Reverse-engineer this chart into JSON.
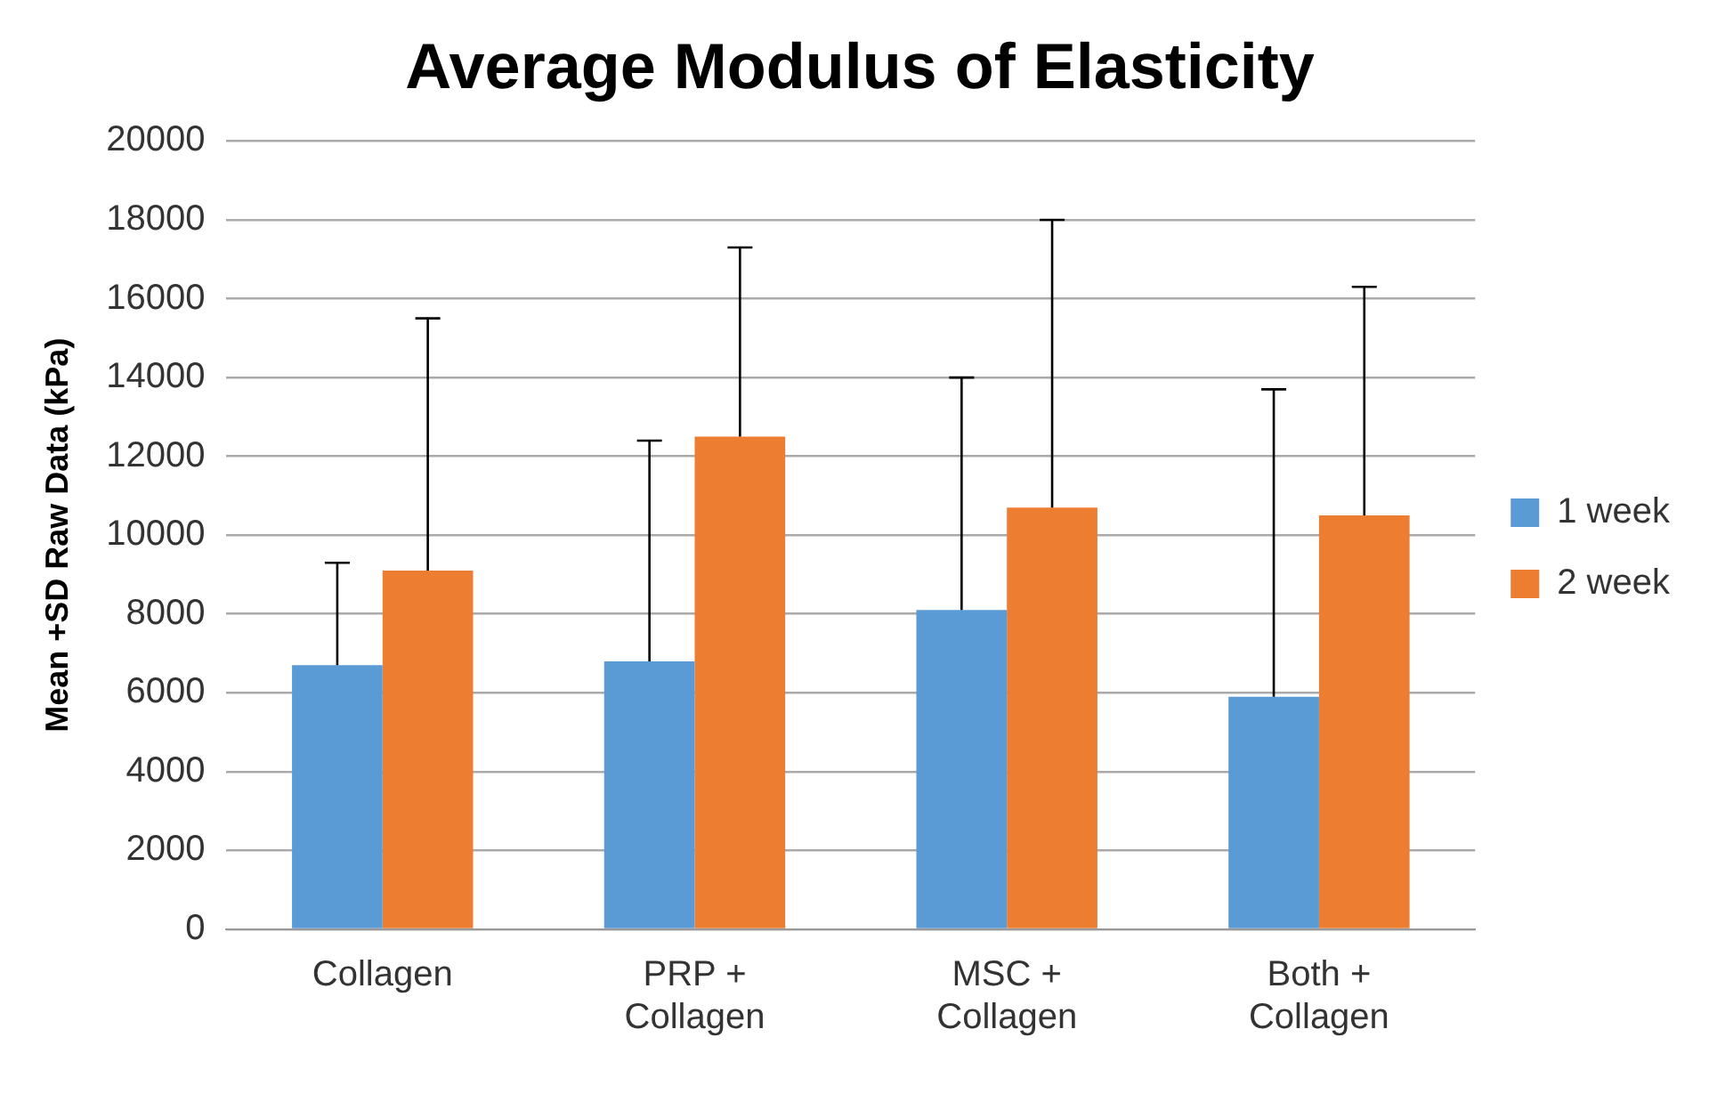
{
  "chart_data": {
    "type": "bar",
    "title": "Average Modulus of Elasticity",
    "ylabel": "Mean +SD Raw Data (kPa)",
    "categories": [
      "Collagen",
      "PRP +\nCollagen",
      "MSC +\nCollagen",
      "Both +\nCollagen"
    ],
    "series": [
      {
        "name": "1 week",
        "color": "#5b9bd5",
        "values": [
          6700,
          6800,
          8100,
          5900
        ],
        "errors": [
          [
            6700,
            9300
          ],
          [
            6800,
            12400
          ],
          [
            8100,
            14000
          ],
          [
            5900,
            13700
          ]
        ]
      },
      {
        "name": "2 week",
        "color": "#ed7d31",
        "values": [
          9100,
          12500,
          10700,
          10500
        ],
        "errors": [
          [
            9100,
            15500
          ],
          [
            12500,
            17300
          ],
          [
            10700,
            18000
          ],
          [
            10500,
            16300
          ]
        ]
      }
    ],
    "ylim": [
      0,
      20000
    ],
    "yticks": [
      0,
      2000,
      4000,
      6000,
      8000,
      10000,
      12000,
      14000,
      16000,
      18000,
      20000
    ],
    "grid": "y",
    "legend": "right"
  }
}
